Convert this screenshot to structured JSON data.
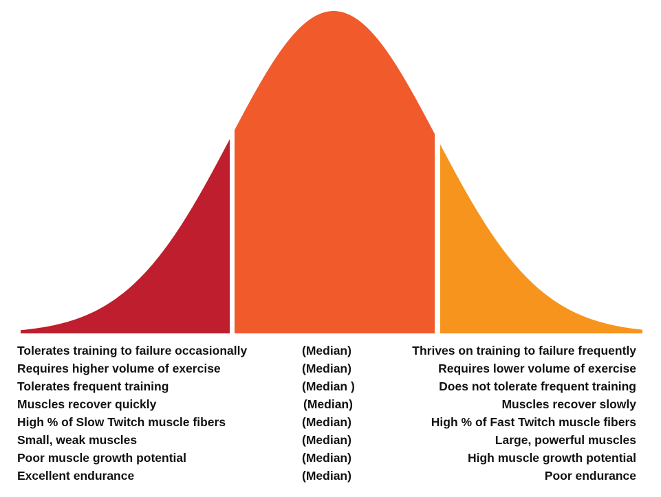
{
  "colors": {
    "left_region": "#BE1E2D",
    "center_region": "#F15A2B",
    "right_region": "#F7941D",
    "text": "#111111",
    "background": "#FFFFFF"
  },
  "rows": [
    {
      "left": "Tolerates training to failure occasionally",
      "middle": "(Median)",
      "right": "Thrives on training to failure frequently"
    },
    {
      "left": "Requires higher volume of exercise",
      "middle": "(Median)",
      "right": "Requires lower volume of exercise"
    },
    {
      "left": "Tolerates frequent training",
      "middle": "(Median )",
      "right": "Does not tolerate frequent training"
    },
    {
      "left": "Muscles recover quickly",
      "middle": "(Median)",
      "right": "Muscles recover slowly"
    },
    {
      "left": "High % of Slow Twitch muscle fibers",
      "middle": "(Median)",
      "right": "High % of Fast Twitch muscle fibers"
    },
    {
      "left": "Small, weak muscles",
      "middle": "(Median)",
      "right": "Large, powerful muscles"
    },
    {
      "left": "Poor muscle growth potential",
      "middle": "(Median)",
      "right": "High muscle growth potential"
    },
    {
      "left": "Excellent endurance",
      "middle": "(Median)",
      "right": "Poor endurance"
    }
  ]
}
